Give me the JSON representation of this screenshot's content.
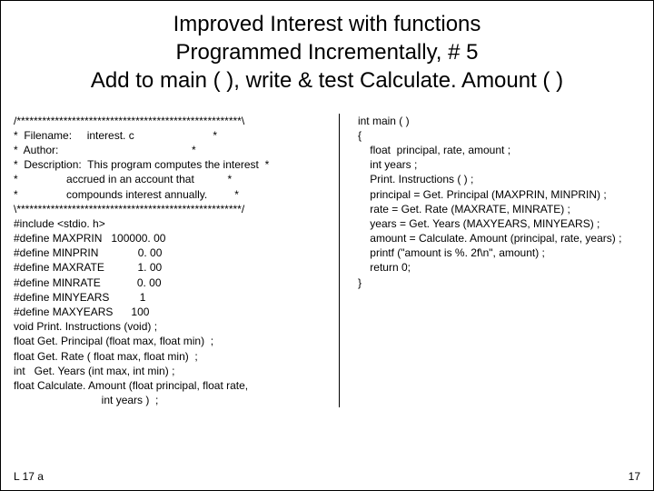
{
  "title": {
    "line1": "Improved Interest with functions",
    "line2": "Programmed Incrementally, # 5",
    "line3": "Add to main ( ), write & test Calculate. Amount ( )"
  },
  "left": "/*****************************************************\\\n*  Filename:     interest. c                          *\n*  Author:                                            *\n*  Description:  This program computes the interest  *\n*                accrued in an account that           *\n*                compounds interest annually.         *\n\\*****************************************************/\n#include <stdio. h>\n#define MAXPRIN   100000. 00\n#define MINPRIN             0. 00\n#define MAXRATE           1. 00\n#define MINRATE            0. 00\n#define MINYEARS          1\n#define MAXYEARS      100\nvoid Print. Instructions (void) ;\nfloat Get. Principal (float max, float min)  ;\nfloat Get. Rate ( float max, float min)  ;\nint   Get. Years (int max, int min) ;\nfloat Calculate. Amount (float principal, float rate,\n                             int years )  ;",
  "right": "int main ( )\n{\n    float  principal, rate, amount ;\n    int years ;\n    Print. Instructions ( ) ;\n    principal = Get. Principal (MAXPRIN, MINPRIN) ;\n    rate = Get. Rate (MAXRATE, MINRATE) ;\n    years = Get. Years (MAXYEARS, MINYEARS) ;\n    amount = Calculate. Amount (principal, rate, years) ;\n    printf (\"amount is %. 2f\\n\", amount) ;\n    return 0;\n}",
  "footer": "L 17 a",
  "pagenum": "17"
}
